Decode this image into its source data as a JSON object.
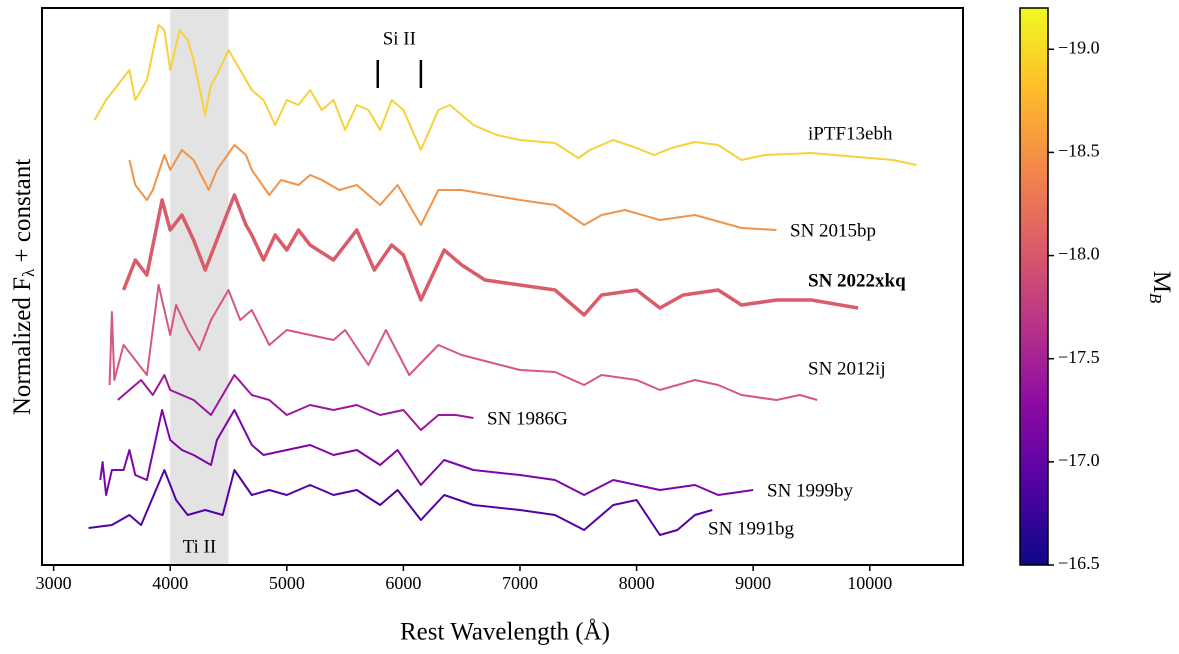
{
  "chart_data": {
    "type": "line",
    "xlabel": "Rest Wavelength (Å)",
    "ylabel": {
      "main": "Normalized F",
      "sub": "λ",
      "rest": " + constant"
    },
    "xlim": [
      2900,
      10800
    ],
    "xticks": [
      3000,
      4000,
      5000,
      6000,
      7000,
      8000,
      9000,
      10000
    ],
    "ylim": [
      0,
      11.14
    ],
    "shaded_band": {
      "x": [
        4000,
        4500
      ],
      "label": "Ti II"
    },
    "line_marker": {
      "x": [
        5780,
        6150
      ],
      "label": "Si II"
    },
    "colorbar": {
      "colormap": "plasma",
      "label": {
        "main": "M",
        "sub": "B"
      },
      "lim": [
        -16.5,
        -19.2
      ],
      "ticks": [
        {
          "value": -19.0,
          "label": "−19.0"
        },
        {
          "value": -18.5,
          "label": "−18.5"
        },
        {
          "value": -18.0,
          "label": "−18.0"
        },
        {
          "value": -17.5,
          "label": "−17.5"
        },
        {
          "value": -17.0,
          "label": "−17.0"
        },
        {
          "value": -16.5,
          "label": "−16.5"
        }
      ]
    },
    "series": [
      {
        "name": "iPTF13ebh",
        "color": "#f6d23a",
        "x": [
          3350,
          3450,
          3550,
          3650,
          3700,
          3800,
          3900,
          3950,
          4000,
          4080,
          4150,
          4200,
          4300,
          4350,
          4400,
          4500,
          4600,
          4700,
          4800,
          4900,
          5000,
          5100,
          5200,
          5300,
          5400,
          5500,
          5600,
          5700,
          5800,
          5900,
          6000,
          6150,
          6300,
          6400,
          6600,
          6800,
          7000,
          7300,
          7500,
          7600,
          7800,
          8000,
          8150,
          8300,
          8500,
          8700,
          8900,
          9100,
          9500,
          10000,
          10200,
          10400
        ],
        "values": [
          8.9,
          9.3,
          9.6,
          9.9,
          9.3,
          9.7,
          10.8,
          10.7,
          9.9,
          10.7,
          10.5,
          10.1,
          9.0,
          9.6,
          9.8,
          10.3,
          9.9,
          9.5,
          9.3,
          8.8,
          9.3,
          9.2,
          9.5,
          9.1,
          9.3,
          8.7,
          9.2,
          9.1,
          8.7,
          9.3,
          9.1,
          8.3,
          9.1,
          9.2,
          8.8,
          8.6,
          8.5,
          8.44,
          8.14,
          8.3,
          8.5,
          8.34,
          8.2,
          8.34,
          8.46,
          8.4,
          8.1,
          8.2,
          8.24,
          8.14,
          8.1,
          8.0
        ]
      },
      {
        "name": "SN 2015bp",
        "color": "#f0944a",
        "x": [
          3650,
          3700,
          3800,
          3850,
          3950,
          4000,
          4100,
          4200,
          4330,
          4400,
          4550,
          4650,
          4700,
          4850,
          4950,
          5100,
          5200,
          5300,
          5450,
          5600,
          5800,
          5950,
          6150,
          6300,
          6500,
          7000,
          7300,
          7550,
          7700,
          7900,
          8200,
          8500,
          8900,
          9200
        ],
        "values": [
          8.1,
          7.6,
          7.3,
          7.5,
          8.2,
          7.9,
          8.3,
          8.1,
          7.5,
          7.9,
          8.4,
          8.2,
          7.9,
          7.4,
          7.7,
          7.6,
          7.8,
          7.7,
          7.5,
          7.6,
          7.2,
          7.6,
          6.8,
          7.5,
          7.5,
          7.3,
          7.2,
          6.8,
          7.0,
          7.1,
          6.9,
          7.0,
          6.74,
          6.7
        ]
      },
      {
        "name": "SN 2022xkq",
        "color": "#da5b6a",
        "x": [
          3600,
          3700,
          3800,
          3930,
          4000,
          4100,
          4200,
          4300,
          4400,
          4550,
          4650,
          4700,
          4800,
          4900,
          5000,
          5100,
          5200,
          5400,
          5500,
          5600,
          5750,
          5900,
          6000,
          6150,
          6350,
          6500,
          6700,
          7000,
          7300,
          7550,
          7700,
          8000,
          8200,
          8400,
          8700,
          8900,
          9200,
          9500,
          9900
        ],
        "values": [
          5.5,
          6.1,
          5.8,
          7.3,
          6.7,
          7.0,
          6.5,
          5.9,
          6.5,
          7.4,
          6.8,
          6.6,
          6.1,
          6.6,
          6.3,
          6.7,
          6.4,
          6.1,
          6.4,
          6.7,
          5.9,
          6.4,
          6.2,
          5.3,
          6.3,
          6.0,
          5.7,
          5.6,
          5.5,
          5.0,
          5.4,
          5.5,
          5.14,
          5.4,
          5.5,
          5.2,
          5.3,
          5.3,
          5.14
        ]
      },
      {
        "name": "SN 2012ij",
        "color": "#d6587a",
        "x": [
          3480,
          3500,
          3520,
          3600,
          3700,
          3800,
          3900,
          4000,
          4050,
          4150,
          4250,
          4350,
          4500,
          4600,
          4700,
          4850,
          5000,
          5200,
          5400,
          5500,
          5700,
          5850,
          6050,
          6300,
          6500,
          7000,
          7300,
          7550,
          7700,
          8000,
          8200,
          8500,
          8700,
          8900,
          9200,
          9400,
          9550
        ],
        "values": [
          3.6,
          5.06,
          3.7,
          4.4,
          4.1,
          3.8,
          5.6,
          4.6,
          5.2,
          4.7,
          4.3,
          4.9,
          5.5,
          4.9,
          5.1,
          4.4,
          4.7,
          4.6,
          4.5,
          4.7,
          4.0,
          4.7,
          3.8,
          4.4,
          4.2,
          3.9,
          3.86,
          3.6,
          3.8,
          3.7,
          3.5,
          3.7,
          3.6,
          3.4,
          3.3,
          3.4,
          3.3
        ]
      },
      {
        "name": "SN 1986G",
        "color": "#9c179e",
        "x": [
          3550,
          3650,
          3750,
          3850,
          3950,
          4000,
          4100,
          4200,
          4350,
          4450,
          4550,
          4700,
          4850,
          5000,
          5200,
          5400,
          5600,
          5800,
          6000,
          6150,
          6300,
          6450,
          6600
        ],
        "values": [
          3.3,
          3.5,
          3.7,
          3.4,
          3.8,
          3.5,
          3.4,
          3.3,
          3.0,
          3.4,
          3.8,
          3.4,
          3.3,
          3.0,
          3.2,
          3.1,
          3.2,
          3.0,
          3.1,
          2.7,
          3.0,
          3.0,
          2.94
        ]
      },
      {
        "name": "SN 1999by",
        "color": "#7e06a6",
        "x": [
          3400,
          3420,
          3450,
          3500,
          3600,
          3650,
          3700,
          3800,
          3930,
          4000,
          4100,
          4200,
          4350,
          4400,
          4550,
          4700,
          4800,
          5000,
          5200,
          5400,
          5600,
          5800,
          5950,
          6150,
          6350,
          6600,
          7000,
          7300,
          7550,
          7800,
          8000,
          8200,
          8500,
          8700,
          9000
        ],
        "values": [
          1.7,
          2.06,
          1.4,
          1.9,
          1.9,
          2.3,
          1.8,
          1.7,
          3.1,
          2.5,
          2.3,
          2.2,
          2.0,
          2.5,
          3.1,
          2.4,
          2.2,
          2.3,
          2.4,
          2.2,
          2.3,
          2.0,
          2.3,
          1.6,
          2.1,
          1.9,
          1.8,
          1.7,
          1.4,
          1.7,
          1.6,
          1.5,
          1.6,
          1.4,
          1.5
        ]
      },
      {
        "name": "SN 1991bg",
        "color": "#5302a3",
        "x": [
          3300,
          3500,
          3650,
          3750,
          3950,
          4050,
          4150,
          4300,
          4450,
          4550,
          4700,
          4850,
          5000,
          5200,
          5400,
          5600,
          5800,
          5950,
          6150,
          6350,
          6600,
          7000,
          7300,
          7550,
          7800,
          8000,
          8200,
          8350,
          8500,
          8650
        ],
        "values": [
          0.74,
          0.8,
          1.0,
          0.8,
          1.9,
          1.3,
          1.0,
          1.1,
          1.0,
          1.9,
          1.4,
          1.5,
          1.4,
          1.6,
          1.4,
          1.5,
          1.2,
          1.5,
          0.9,
          1.4,
          1.2,
          1.1,
          1.0,
          0.7,
          1.2,
          1.3,
          0.6,
          0.7,
          1.0,
          1.1
        ]
      }
    ]
  }
}
